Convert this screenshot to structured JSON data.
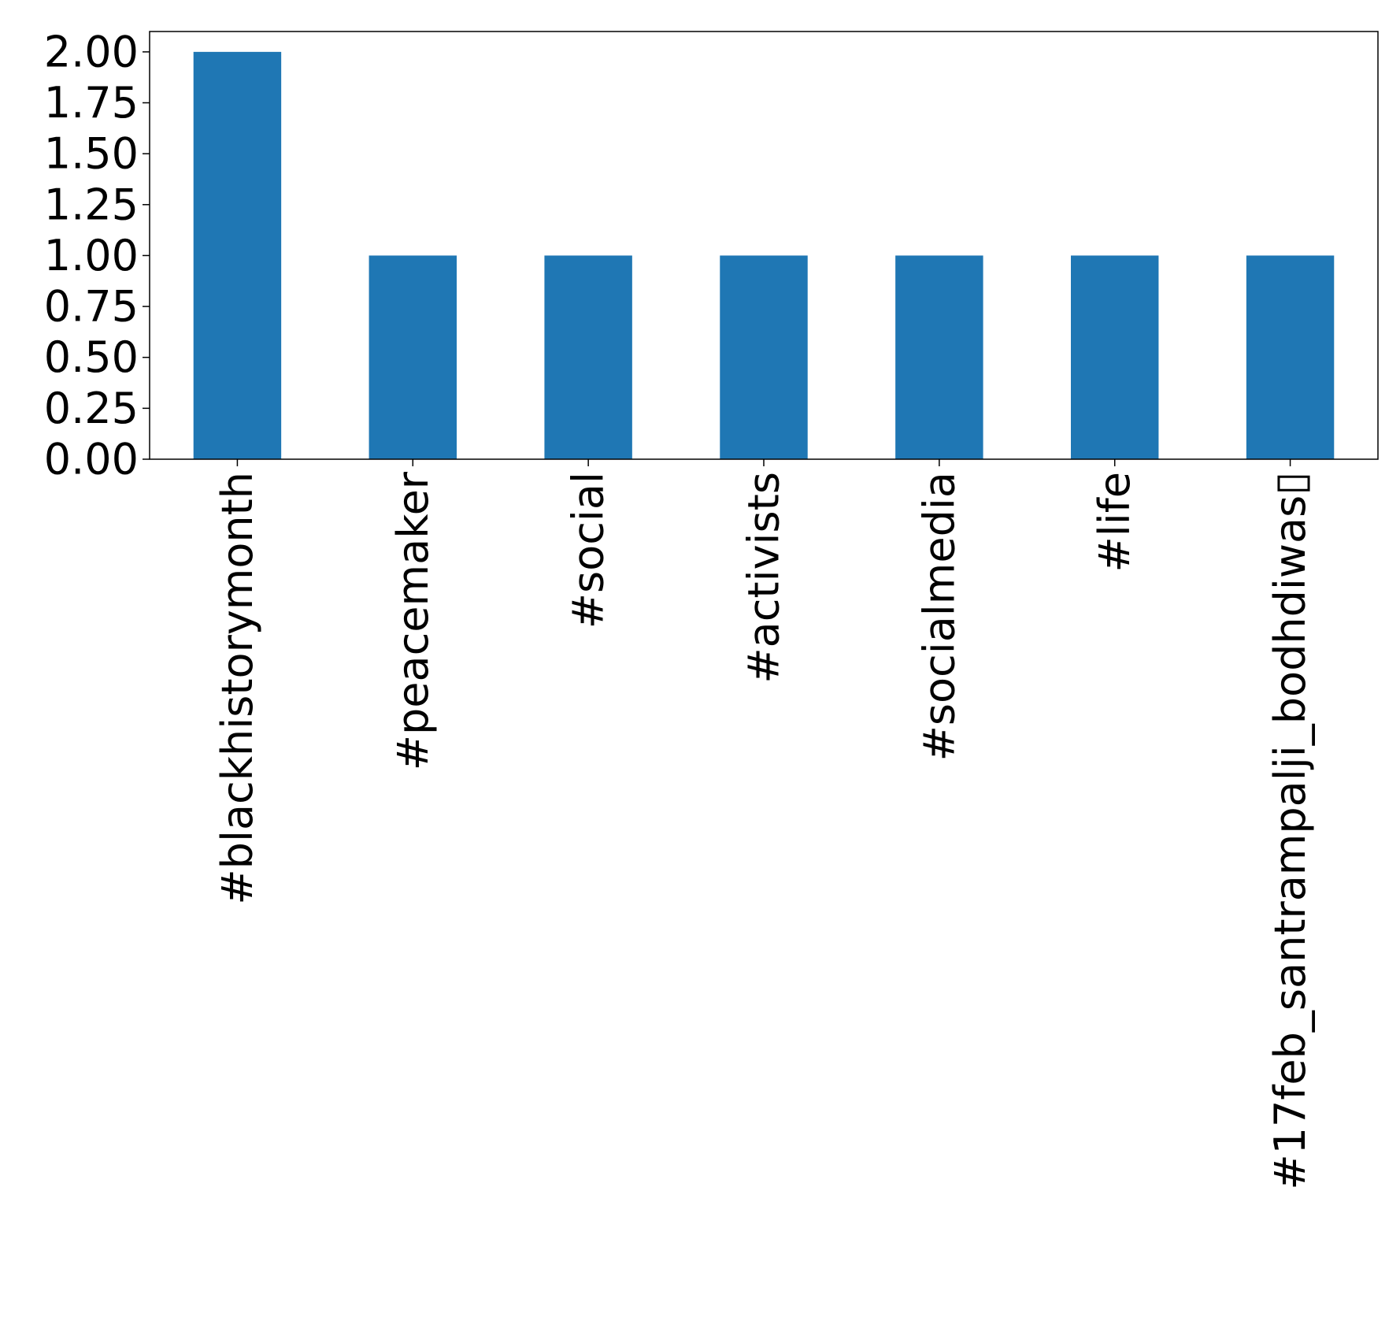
{
  "chart_data": {
    "type": "bar",
    "categories": [
      "#blackhistorymonth",
      "#peacemaker",
      "#social",
      "#activists",
      "#socialmedia",
      "#life",
      "#17feb_santrampalji_bodhdiwas▯"
    ],
    "values": [
      2,
      1,
      1,
      1,
      1,
      1,
      1
    ],
    "ylim": [
      0,
      2.1
    ],
    "yticks": [
      0,
      0.25,
      0.5,
      0.75,
      1.0,
      1.25,
      1.5,
      1.75,
      2.0
    ],
    "ytick_labels": [
      "0.00",
      "0.25",
      "0.50",
      "0.75",
      "1.00",
      "1.25",
      "1.50",
      "1.75",
      "2.00"
    ],
    "xlabel": "",
    "ylabel": "",
    "title": "",
    "grid": false,
    "legend": false,
    "bar_color": "#1f77b4"
  }
}
